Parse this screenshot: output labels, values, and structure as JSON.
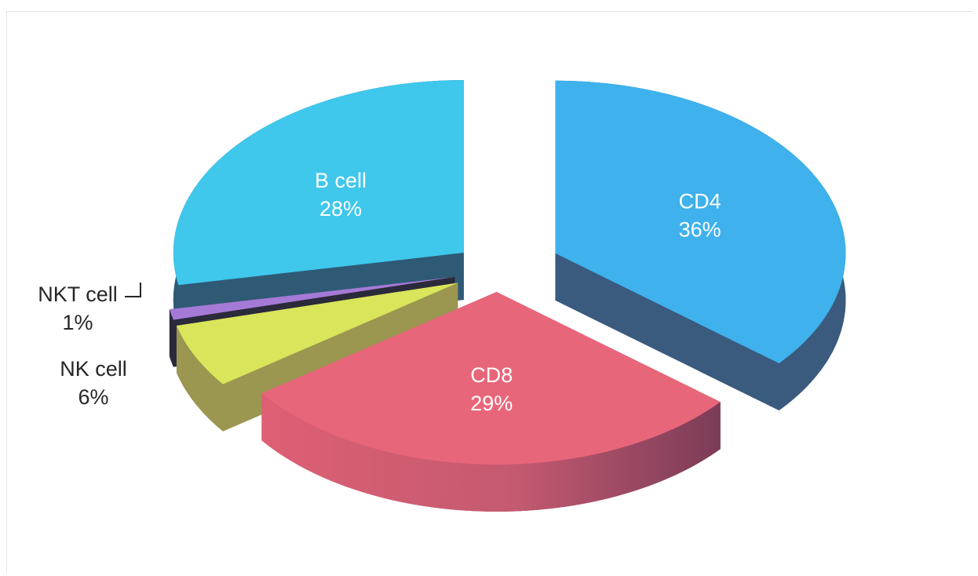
{
  "chart_data": {
    "type": "pie",
    "style": "3d-exploded",
    "title": "",
    "slices": [
      {
        "label": "CD4",
        "value": 36,
        "display": "36%",
        "color": "#3fb1ec"
      },
      {
        "label": "CD8",
        "value": 29,
        "display": "29%",
        "color": "#e8667a"
      },
      {
        "label": "NK cell",
        "value": 6,
        "display": "6%",
        "color": "#d9e55a"
      },
      {
        "label": "NKT cell",
        "value": 1,
        "display": "1%",
        "color": "#a57ad6"
      },
      {
        "label": "B cell",
        "value": 28,
        "display": "28%",
        "color": "#3fc7ec"
      }
    ],
    "legend": "none",
    "data_labels": "category-and-percent"
  }
}
